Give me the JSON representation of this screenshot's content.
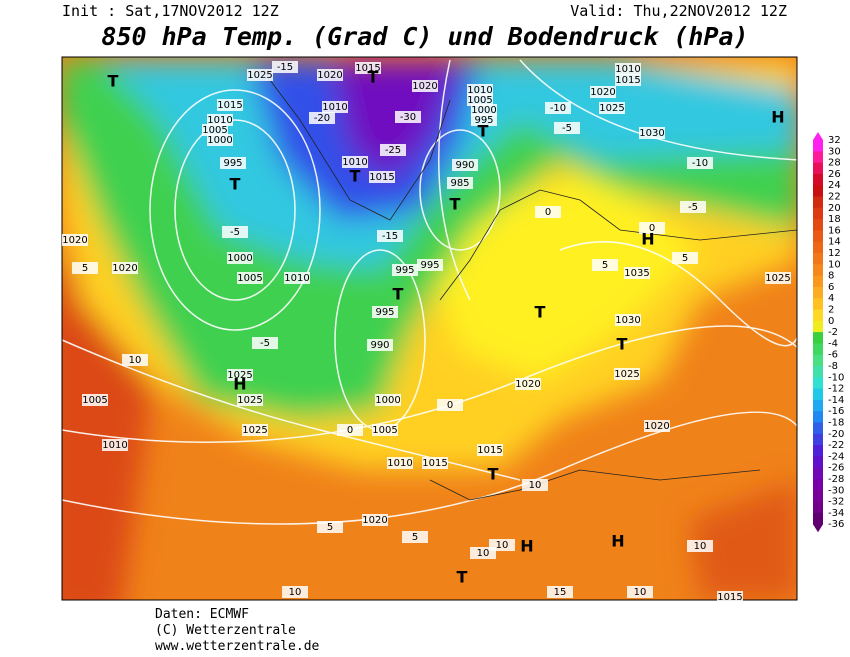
{
  "header": {
    "init": "Init : Sat,17NOV2012 12Z",
    "valid": "Valid: Thu,22NOV2012 12Z",
    "title": "850 hPa Temp. (Grad C) und Bodendruck (hPa)"
  },
  "map_labels": [
    "1025",
    "1025",
    "1025",
    "1005",
    "1010",
    "1020",
    "1020",
    "1000",
    "1005",
    "1010",
    "995",
    "1000",
    "1005",
    "1010",
    "1015",
    "1025",
    "1020",
    "1015",
    "1020",
    "1010",
    "1005",
    "1000",
    "995",
    "990",
    "985",
    "995",
    "995",
    "995",
    "990",
    "1000",
    "1005",
    "1010",
    "1015",
    "1015",
    "1020",
    "1025",
    "1030",
    "1035",
    "1030",
    "1025",
    "1020",
    "1015",
    "1010",
    "1020",
    "1020",
    "1015",
    "1025",
    "1010",
    "1015",
    "1010",
    "-5",
    "-5",
    "-10",
    "-5",
    "-10",
    "-5",
    "0",
    "5",
    "0",
    "5",
    "10",
    "10",
    "10",
    "10",
    "10",
    "10",
    "15",
    "10",
    "-30",
    "-25",
    "-15",
    "-20",
    "-15",
    "0",
    "5",
    "5",
    "0",
    "5",
    "H",
    "H",
    "H",
    "H",
    "H",
    "T",
    "T",
    "T",
    "T",
    "T",
    "T",
    "T",
    "T",
    "T",
    "T",
    "T"
  ],
  "legend": {
    "ticks": [
      32,
      30,
      28,
      26,
      24,
      22,
      20,
      18,
      16,
      14,
      12,
      10,
      8,
      6,
      4,
      2,
      0,
      -2,
      -4,
      -6,
      -8,
      -10,
      -12,
      -14,
      -16,
      -18,
      -20,
      -22,
      -24,
      -26,
      -28,
      -30,
      -32,
      -34,
      -36
    ],
    "colors": [
      "#ff22ee",
      "#ff1a9a",
      "#e8105a",
      "#d40a2a",
      "#c81010",
      "#d22a10",
      "#dc3a12",
      "#e24a14",
      "#e85a16",
      "#ec6818",
      "#f0781a",
      "#f4881c",
      "#f8981e",
      "#fcac20",
      "#ffc020",
      "#ffd824",
      "#f0ec20",
      "#38d040",
      "#40d860",
      "#48e080",
      "#40e0a8",
      "#30e0d0",
      "#20c8e8",
      "#20a8f0",
      "#2088f0",
      "#3060e8",
      "#4040e0",
      "#5020d8",
      "#6010c8",
      "#7008b8",
      "#7800a8",
      "#780098",
      "#700088",
      "#600070"
    ]
  },
  "footer": [
    "Daten: ECMWF",
    "(C) Wetterzentrale",
    "www.wetterzentrale.de"
  ]
}
